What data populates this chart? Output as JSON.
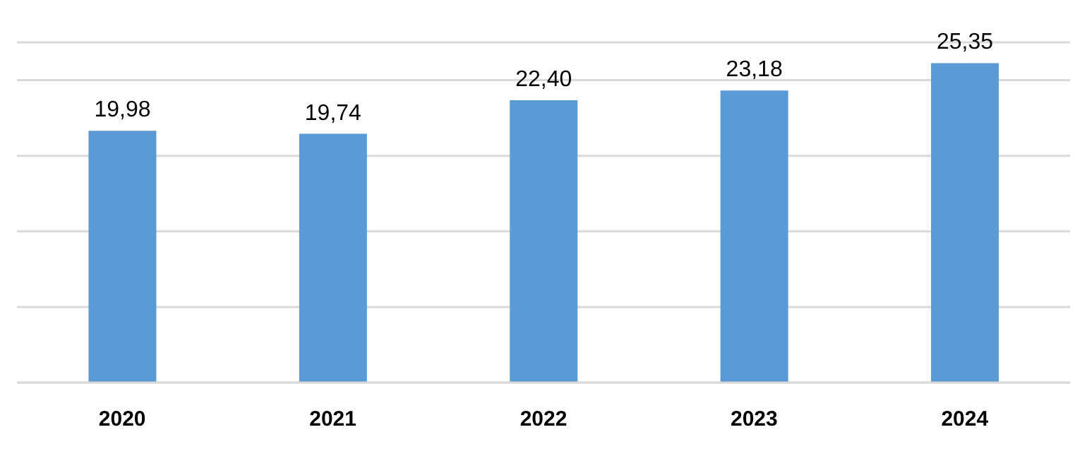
{
  "chart_data": {
    "type": "bar",
    "categories": [
      "2020",
      "2021",
      "2022",
      "2023",
      "2024"
    ],
    "values": [
      19.98,
      19.74,
      22.4,
      23.18,
      25.35
    ],
    "value_labels": [
      "19,98",
      "19,74",
      "22,40",
      "23,18",
      "25,35"
    ],
    "color": "#5b9bd5",
    "ylim": [
      0,
      27
    ],
    "tick_labels": "x",
    "grid": "y"
  }
}
